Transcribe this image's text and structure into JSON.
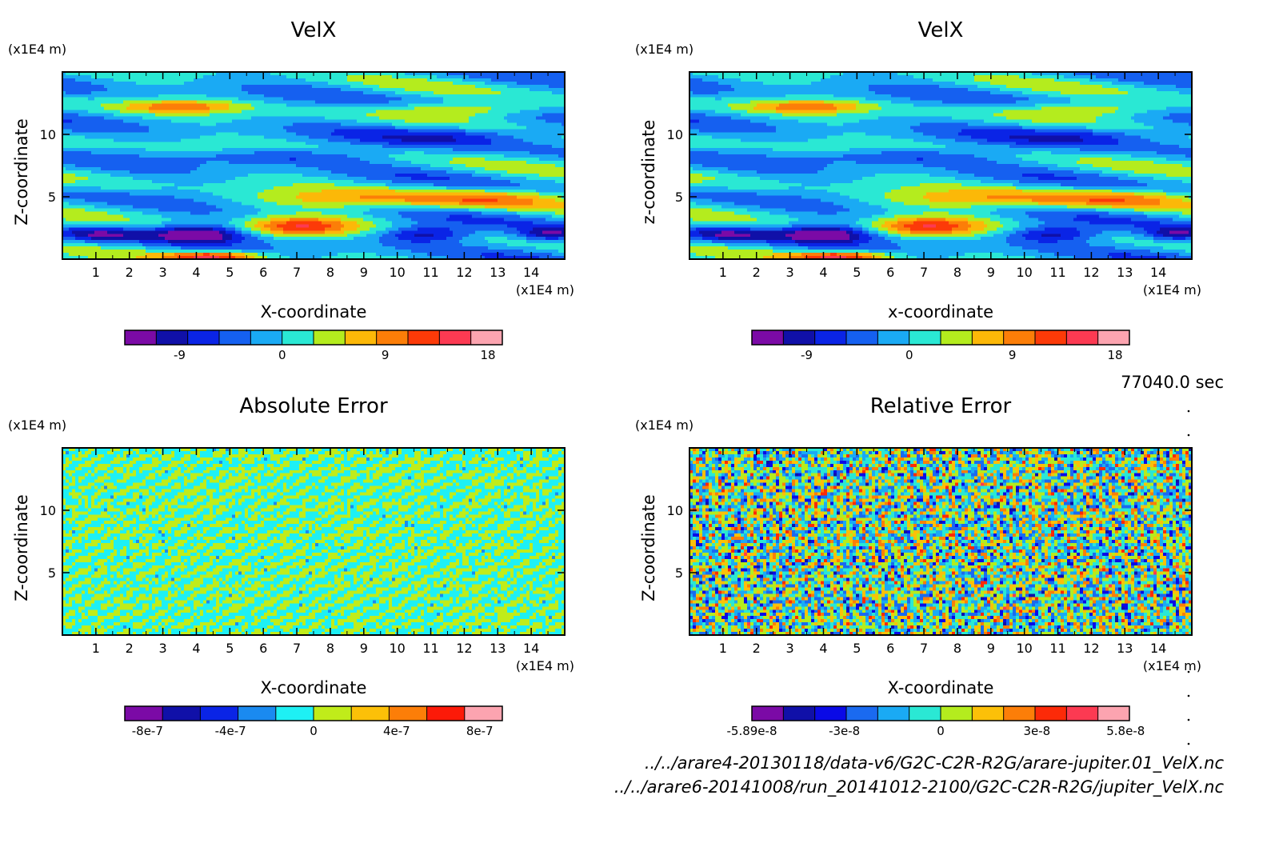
{
  "timestamp": "77040.0 sec",
  "files": [
    "../../arare4-20130118/data-v6/G2C-C2R-R2G/arare-jupiter.01_VelX.nc",
    "../../arare6-20141008/run_20141012-2100/G2C-C2R-R2G/jupiter_VelX.nc"
  ],
  "chart_data": [
    {
      "type": "heatmap",
      "title": "VelX",
      "xlabel": "X-coordinate",
      "ylabel": "Z-coordinate",
      "x_unit": "(x1E4 m)",
      "y_unit": "(x1E4 m)",
      "xlim": [
        0,
        15
      ],
      "ylim": [
        0,
        15
      ],
      "xticks": [
        1,
        2,
        3,
        4,
        5,
        6,
        7,
        8,
        9,
        10,
        11,
        12,
        13,
        14
      ],
      "yticks": [
        5,
        10
      ],
      "field": "smooth",
      "colorbar": {
        "ticks": [
          {
            "label": "-9",
            "pos": 0.145
          },
          {
            "label": "0",
            "pos": 0.417
          },
          {
            "label": "9",
            "pos": 0.69
          },
          {
            "label": "18",
            "pos": 0.962
          }
        ],
        "colors": [
          "#7b0aa6",
          "#1010a8",
          "#0a24e6",
          "#1560f0",
          "#1aaaf4",
          "#2ae8d4",
          "#b4ec1e",
          "#fcb808",
          "#fc7e08",
          "#fc3a08",
          "#fc3a52",
          "#fca4b0"
        ]
      }
    },
    {
      "type": "heatmap",
      "title": "VelX",
      "xlabel": "x-coordinate",
      "ylabel": "z-coordinate",
      "x_unit": "(x1E4 m)",
      "y_unit": "(x1E4 m)",
      "xlim": [
        0,
        15
      ],
      "ylim": [
        0,
        15
      ],
      "xticks": [
        1,
        2,
        3,
        4,
        5,
        6,
        7,
        8,
        9,
        10,
        11,
        12,
        13,
        14
      ],
      "yticks": [
        5,
        10
      ],
      "field": "smooth",
      "colorbar": {
        "ticks": [
          {
            "label": "-9",
            "pos": 0.145
          },
          {
            "label": "0",
            "pos": 0.417
          },
          {
            "label": "9",
            "pos": 0.69
          },
          {
            "label": "18",
            "pos": 0.962
          }
        ],
        "colors": [
          "#7b0aa6",
          "#1010a8",
          "#0a24e6",
          "#1560f0",
          "#1aaaf4",
          "#2ae8d4",
          "#b4ec1e",
          "#fcb808",
          "#fc7e08",
          "#fc3a08",
          "#fc3a52",
          "#fca4b0"
        ]
      }
    },
    {
      "type": "heatmap",
      "title": "Absolute Error",
      "xlabel": "X-coordinate",
      "ylabel": "Z-coordinate",
      "x_unit": "(x1E4 m)",
      "y_unit": "(x1E4 m)",
      "xlim": [
        0,
        15
      ],
      "ylim": [
        0,
        15
      ],
      "xticks": [
        1,
        2,
        3,
        4,
        5,
        6,
        7,
        8,
        9,
        10,
        11,
        12,
        13,
        14
      ],
      "yticks": [
        5,
        10
      ],
      "field": "abserr",
      "colorbar": {
        "ticks": [
          {
            "label": "-8e-7",
            "pos": 0.06
          },
          {
            "label": "-4e-7",
            "pos": 0.28
          },
          {
            "label": "0",
            "pos": 0.5
          },
          {
            "label": "4e-7",
            "pos": 0.72
          },
          {
            "label": "8e-7",
            "pos": 0.94
          }
        ],
        "colors": [
          "#7b0aa6",
          "#1010a8",
          "#0a24e6",
          "#1a8af0",
          "#1ef0f4",
          "#c0ec1a",
          "#fcc008",
          "#fc7e08",
          "#fc1a08",
          "#fca4b0"
        ]
      }
    },
    {
      "type": "heatmap",
      "title": "Relative Error",
      "xlabel": "X-coordinate",
      "ylabel": "Z-coordinate",
      "x_unit": "(x1E4 m)",
      "y_unit": "(x1E4 m)",
      "xlim": [
        0,
        15
      ],
      "ylim": [
        0,
        15
      ],
      "xticks": [
        1,
        2,
        3,
        4,
        5,
        6,
        7,
        8,
        9,
        10,
        11,
        12,
        13,
        14
      ],
      "yticks": [
        5,
        10
      ],
      "field": "relerr",
      "colorbar": {
        "ticks": [
          {
            "label": "-5.89e-8",
            "pos": 0.0
          },
          {
            "label": "-3e-8",
            "pos": 0.245
          },
          {
            "label": "0",
            "pos": 0.5
          },
          {
            "label": "3e-8",
            "pos": 0.755
          },
          {
            "label": "5.8e-8",
            "pos": 0.99
          }
        ],
        "colors": [
          "#7b0aa6",
          "#1010a8",
          "#0a0ae6",
          "#1a6af0",
          "#1aaaf4",
          "#2ae8d4",
          "#b4ec1e",
          "#fcc008",
          "#fc7e08",
          "#fc2a08",
          "#fc3a52",
          "#fca4b0"
        ]
      }
    }
  ]
}
